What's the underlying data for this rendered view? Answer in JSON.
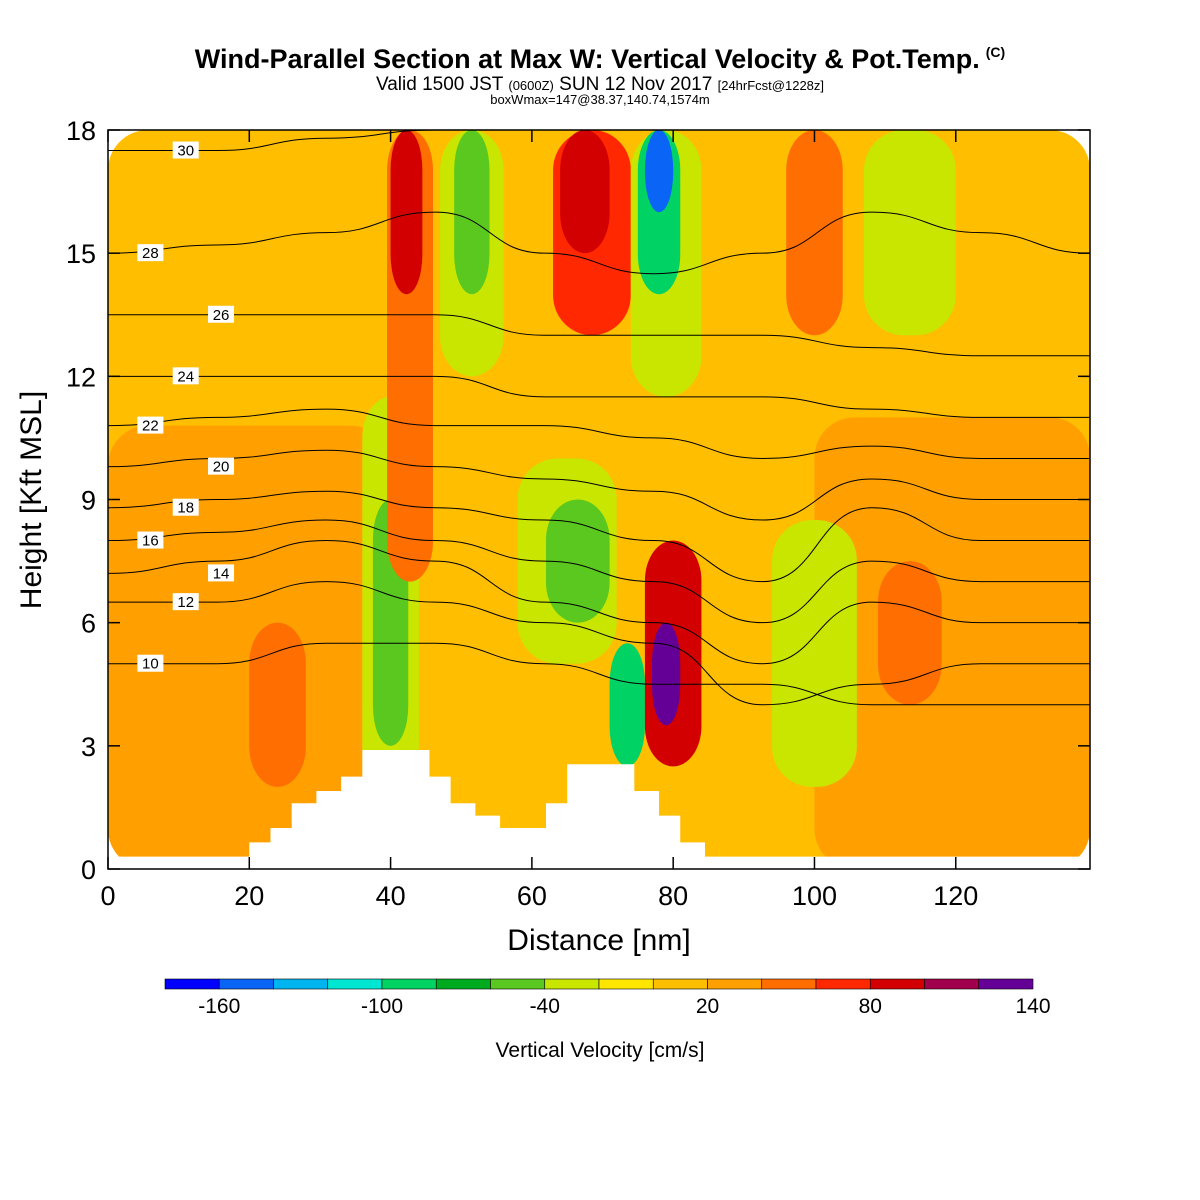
{
  "title": {
    "main": "Wind-Parallel Section at Max W: Vertical Velocity & Pot.Temp.",
    "copyright": "(C)",
    "valid_prefix": "Valid 1500 JST",
    "utc": "(0600Z)",
    "valid_date": "SUN 12 Nov 2017",
    "forecast": "[24hrFcst@1228z]",
    "boxmax": "boxWmax=147@38.37,140.74,1574m"
  },
  "chart_data": {
    "type": "heatmap",
    "xlabel": "Distance [nm]",
    "ylabel": "Height [Kft MSL]",
    "xlim": [
      0,
      139
    ],
    "ylim": [
      0,
      18
    ],
    "x_ticks": [
      "0",
      "20",
      "40",
      "60",
      "80",
      "100",
      "120"
    ],
    "y_ticks": [
      "0",
      "3",
      "6",
      "9",
      "12",
      "15",
      "18"
    ],
    "colorbar": {
      "label": "Vertical Velocity [cm/s]",
      "tick_labels": [
        "-160",
        "-100",
        "-40",
        "20",
        "80",
        "140"
      ],
      "colors": [
        "#0000ff",
        "#0a64f5",
        "#00b4f0",
        "#00e6d2",
        "#00d264",
        "#00aa1e",
        "#5ac81e",
        "#c8e600",
        "#ffe600",
        "#ffbe00",
        "#ffa000",
        "#ff6e00",
        "#ff2800",
        "#d20000",
        "#a0004b",
        "#640096"
      ]
    },
    "velocity_cells": [
      {
        "x": [
          0,
          139
        ],
        "y": [
          0,
          18
        ],
        "w": 10
      },
      {
        "x": [
          0,
          40
        ],
        "y": [
          0,
          10.8
        ],
        "w": 20
      },
      {
        "x": [
          100,
          139
        ],
        "y": [
          0,
          11
        ],
        "w": 20
      },
      {
        "x": [
          20,
          28
        ],
        "y": [
          2,
          6
        ],
        "w": 40
      },
      {
        "x": [
          36,
          44
        ],
        "y": [
          2,
          11.5
        ],
        "w": -30
      },
      {
        "x": [
          37.5,
          42.5
        ],
        "y": [
          3,
          9
        ],
        "w": -50
      },
      {
        "x": [
          39.5,
          46
        ],
        "y": [
          7,
          18
        ],
        "w": 40
      },
      {
        "x": [
          40,
          44.5
        ],
        "y": [
          14,
          18
        ],
        "w": 80
      },
      {
        "x": [
          47,
          56
        ],
        "y": [
          12,
          18
        ],
        "w": -30
      },
      {
        "x": [
          49,
          54
        ],
        "y": [
          14,
          18
        ],
        "w": -50
      },
      {
        "x": [
          58,
          72
        ],
        "y": [
          5,
          10
        ],
        "w": -30
      },
      {
        "x": [
          62,
          71
        ],
        "y": [
          6,
          9
        ],
        "w": -50
      },
      {
        "x": [
          71,
          76
        ],
        "y": [
          2.5,
          5.5
        ],
        "w": -100
      },
      {
        "x": [
          63,
          74
        ],
        "y": [
          13,
          18
        ],
        "w": 60
      },
      {
        "x": [
          64,
          71
        ],
        "y": [
          15,
          18
        ],
        "w": 80
      },
      {
        "x": [
          74,
          84
        ],
        "y": [
          11.5,
          18
        ],
        "w": -30
      },
      {
        "x": [
          75,
          81
        ],
        "y": [
          14,
          18
        ],
        "w": -100
      },
      {
        "x": [
          76,
          80
        ],
        "y": [
          16,
          18
        ],
        "w": -160
      },
      {
        "x": [
          76,
          84
        ],
        "y": [
          2.5,
          8
        ],
        "w": 80
      },
      {
        "x": [
          77,
          81
        ],
        "y": [
          3.5,
          6
        ],
        "w": 140
      },
      {
        "x": [
          94,
          106
        ],
        "y": [
          2,
          8.5
        ],
        "w": -40
      },
      {
        "x": [
          96,
          104
        ],
        "y": [
          13,
          18
        ],
        "w": 40
      },
      {
        "x": [
          107,
          120
        ],
        "y": [
          13,
          18
        ],
        "w": -40
      },
      {
        "x": [
          109,
          118
        ],
        "y": [
          4,
          7.5
        ],
        "w": 40
      }
    ],
    "theta_contours": [
      {
        "label": "10",
        "levels": [
          5,
          5,
          5.5,
          5.5,
          5,
          4.5,
          4.5,
          4,
          4,
          4
        ]
      },
      {
        "label": "12",
        "levels": [
          6.5,
          6.5,
          7,
          6.5,
          6,
          5.5,
          4,
          4.5,
          5,
          5
        ]
      },
      {
        "label": "14",
        "levels": [
          7.2,
          7.5,
          8,
          7.5,
          6.5,
          6,
          5,
          6.5,
          6,
          6
        ]
      },
      {
        "label": "16",
        "levels": [
          8,
          8.2,
          8.5,
          8,
          7.5,
          7,
          6,
          7.5,
          7,
          7
        ]
      },
      {
        "label": "18",
        "levels": [
          8.8,
          9,
          9.2,
          8.8,
          8.5,
          8,
          7,
          8.8,
          8,
          8
        ]
      },
      {
        "label": "20",
        "levels": [
          9.8,
          10,
          10.2,
          9.8,
          9.5,
          9.2,
          8.5,
          9.5,
          9,
          9
        ]
      },
      {
        "label": "22",
        "levels": [
          10.8,
          11,
          11.2,
          10.8,
          10.8,
          10.5,
          10,
          10.3,
          10,
          10
        ]
      },
      {
        "label": "24",
        "levels": [
          12,
          12,
          12,
          12,
          11.5,
          11.5,
          11.5,
          11.2,
          11,
          11
        ]
      },
      {
        "label": "26",
        "levels": [
          13.5,
          13.5,
          13.5,
          13.5,
          13,
          13,
          13,
          12.7,
          12.5,
          12.5
        ]
      },
      {
        "label": "28",
        "levels": [
          15,
          15.2,
          15.5,
          16,
          15,
          14.5,
          15,
          16,
          15.5,
          15
        ]
      },
      {
        "label": "30",
        "levels": [
          17.5,
          17.5,
          17.8,
          18,
          18,
          18,
          18,
          18,
          18,
          18
        ]
      }
    ],
    "terrain": [
      [
        0,
        0.3
      ],
      [
        20,
        0.3
      ],
      [
        20,
        0.65
      ],
      [
        23,
        0.65
      ],
      [
        23,
        1
      ],
      [
        26,
        1
      ],
      [
        26,
        1.6
      ],
      [
        29.5,
        1.6
      ],
      [
        29.5,
        1.9
      ],
      [
        33,
        1.9
      ],
      [
        33,
        2.25
      ],
      [
        36,
        2.25
      ],
      [
        36,
        2.9
      ],
      [
        45.5,
        2.9
      ],
      [
        45.5,
        2.25
      ],
      [
        48.5,
        2.25
      ],
      [
        48.5,
        1.6
      ],
      [
        52,
        1.6
      ],
      [
        52,
        1.3
      ],
      [
        55.5,
        1.3
      ],
      [
        55.5,
        1
      ],
      [
        62,
        1
      ],
      [
        62,
        1.6
      ],
      [
        65,
        1.6
      ],
      [
        65,
        2.55
      ],
      [
        74.5,
        2.55
      ],
      [
        74.5,
        1.9
      ],
      [
        78,
        1.9
      ],
      [
        78,
        1.3
      ],
      [
        81,
        1.3
      ],
      [
        81,
        0.65
      ],
      [
        84.5,
        0.65
      ],
      [
        84.5,
        0.3
      ],
      [
        139,
        0.3
      ]
    ]
  }
}
